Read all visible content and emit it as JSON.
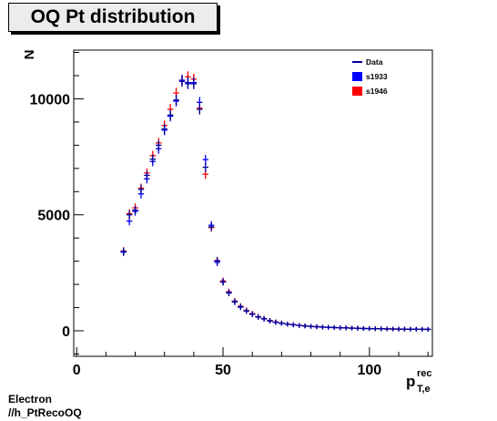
{
  "title": "OQ Pt distribution",
  "footer_line1": "Electron",
  "footer_line2": "//h_PtRecoOQ",
  "chart_data": {
    "type": "scatter",
    "title": "OQ Pt distribution",
    "ylabel": "N",
    "xlabel_main": "p",
    "xlabel_sup": "rec",
    "xlabel_sub": "T,e",
    "xlim": [
      -1,
      121.5
    ],
    "ylim": [
      -1100,
      12100
    ],
    "x_ticks": [
      0,
      50,
      100
    ],
    "y_ticks": [
      0,
      5000,
      10000
    ],
    "grid": false,
    "legend": {
      "placement": "top-right",
      "entries": [
        {
          "label": "Data",
          "kind": "line",
          "color": "#000099"
        },
        {
          "label": "s1933",
          "kind": "box",
          "color": "#0000ff"
        },
        {
          "label": "s1946",
          "kind": "box",
          "color": "#ff0000"
        }
      ]
    },
    "bin_half_width": 1,
    "series": [
      {
        "name": "Data",
        "color": "#000099",
        "x": [
          16,
          18,
          20,
          22,
          24,
          26,
          28,
          30,
          32,
          34,
          36,
          38,
          40,
          42,
          44,
          46,
          48,
          50,
          52,
          54,
          56,
          58,
          60,
          62,
          64,
          66,
          68,
          70,
          72,
          74,
          76,
          78,
          80,
          82,
          84,
          86,
          88,
          90,
          92,
          94,
          96,
          98,
          100,
          102,
          104,
          106,
          108,
          110,
          112,
          114,
          116,
          118,
          120,
          122
        ],
        "y": [
          3420,
          5000,
          5200,
          6100,
          6700,
          7400,
          8000,
          8700,
          9300,
          9950,
          10750,
          10700,
          10650,
          9550,
          7050,
          4480,
          3010,
          2110,
          1650,
          1260,
          1040,
          860,
          720,
          600,
          520,
          430,
          370,
          330,
          290,
          260,
          230,
          210,
          190,
          175,
          160,
          150,
          140,
          130,
          125,
          115,
          110,
          100,
          95,
          90,
          85,
          80,
          78,
          75,
          72,
          70,
          68,
          65,
          62,
          500
        ]
      },
      {
        "name": "s1933",
        "color": "#0000ff",
        "x": [
          16,
          18,
          20,
          22,
          24,
          26,
          28,
          30,
          32,
          34,
          36,
          38,
          40,
          42,
          44,
          46,
          48,
          50,
          52,
          54,
          56,
          58,
          60,
          62,
          64,
          66,
          68,
          70,
          72,
          74,
          76,
          78,
          80,
          82,
          84,
          86,
          88,
          90,
          92,
          94,
          96,
          98,
          100,
          102,
          104,
          106,
          108,
          110,
          112,
          114,
          116,
          118,
          120,
          122
        ],
        "y": [
          3390,
          4730,
          5150,
          5900,
          6550,
          7300,
          7850,
          8650,
          9250,
          9900,
          10800,
          10650,
          10700,
          9850,
          7380,
          4550,
          2950,
          2100,
          1630,
          1240,
          1020,
          850,
          710,
          590,
          510,
          425,
          365,
          325,
          285,
          255,
          228,
          208,
          188,
          172,
          158,
          148,
          138,
          128,
          122,
          113,
          108,
          98,
          93,
          88,
          83,
          78,
          76,
          73,
          70,
          68,
          66,
          63,
          60,
          540
        ]
      },
      {
        "name": "s1946",
        "color": "#ff0000",
        "x": [
          16,
          18,
          20,
          22,
          24,
          26,
          28,
          30,
          32,
          34,
          36,
          38,
          40,
          42,
          44,
          46,
          48,
          50,
          52,
          54,
          56,
          58,
          60,
          62,
          64,
          66,
          68,
          70,
          72,
          74,
          76,
          78,
          80,
          82,
          84,
          86,
          88,
          90,
          92,
          94,
          96,
          98,
          100,
          102,
          104,
          106,
          108,
          110,
          112,
          114,
          116,
          118,
          120,
          122
        ],
        "y": [
          3440,
          5050,
          5300,
          6150,
          6800,
          7550,
          8100,
          8850,
          9550,
          10250,
          10800,
          10950,
          10850,
          9600,
          6750,
          4450,
          3030,
          2150,
          1680,
          1280,
          1060,
          880,
          740,
          610,
          530,
          440,
          380,
          335,
          295,
          265,
          235,
          215,
          192,
          178,
          162,
          152,
          142,
          132,
          127,
          117,
          112,
          102,
          97,
          92,
          87,
          82,
          80,
          77,
          74,
          72,
          70,
          67,
          64,
          520
        ]
      }
    ]
  }
}
